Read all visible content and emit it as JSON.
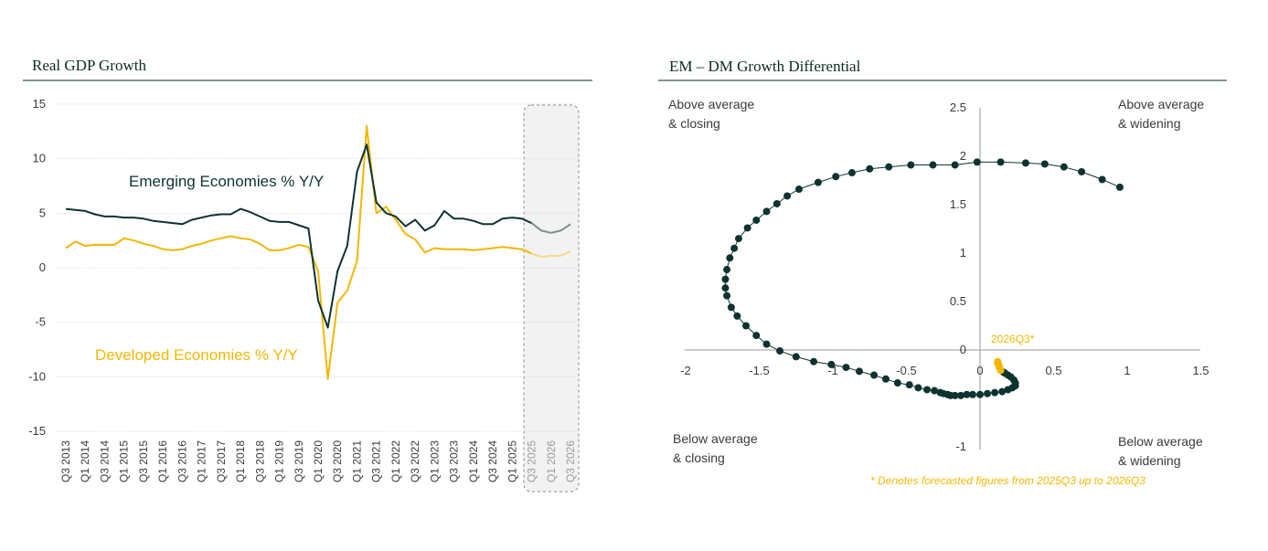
{
  "colors": {
    "em": "#0d3330",
    "dm": "#f2b705",
    "em_forecast": "#7f8d8b",
    "dm_forecast": "#f4d98a",
    "axis": "#9a9a9a",
    "grid": "#d3d3d3",
    "text": "#3a3a3a",
    "dark": "#0d2b26"
  },
  "chart_data": [
    {
      "type": "line",
      "title": "Real GDP Growth",
      "xlabel": "",
      "ylabel": "",
      "ylim": [
        -15,
        15
      ],
      "yticks": [
        15,
        10,
        5,
        0,
        -5,
        -10,
        -15
      ],
      "ytick_labels": [
        "15",
        "10",
        "5",
        "0",
        "-5",
        "-10",
        "-15"
      ],
      "x_tick_labels": [
        "Q3 2013",
        "Q1 2014",
        "Q3 2014",
        "Q1 2015",
        "Q3 2015",
        "Q1 2016",
        "Q3 2016",
        "Q1 2017",
        "Q3 2017",
        "Q1 2018",
        "Q3 2018",
        "Q1 2019",
        "Q3 2019",
        "Q1 2020",
        "Q3 2020",
        "Q1 2021",
        "Q3 2021",
        "Q1 2022",
        "Q3 2022",
        "Q1 2023",
        "Q3 2023",
        "Q1 2024",
        "Q3 2024",
        "Q1 2025",
        "Q3 2025",
        "Q1 2026",
        "Q3 2026"
      ],
      "forecast_start_index": 48,
      "forecast_tick_labels": [
        "Q3 2025",
        "Q1 2026",
        "Q3 2026"
      ],
      "series": [
        {
          "name": "Emerging Economies % Y/Y",
          "label": "Emerging Economies % Y/Y",
          "values": [
            5.4,
            5.3,
            5.2,
            4.9,
            4.7,
            4.7,
            4.6,
            4.6,
            4.5,
            4.3,
            4.2,
            4.1,
            4.0,
            4.4,
            4.6,
            4.8,
            4.9,
            4.9,
            5.4,
            5.1,
            4.7,
            4.3,
            4.2,
            4.2,
            3.9,
            3.6,
            -3.0,
            -5.5,
            -0.3,
            2.0,
            8.8,
            11.3,
            6.0,
            5.0,
            4.7,
            3.8,
            4.4,
            3.4,
            3.9,
            5.2,
            4.5,
            4.5,
            4.3,
            4.0,
            4.0,
            4.5,
            4.6,
            4.5,
            4.1,
            3.4,
            3.2,
            3.4,
            4.0
          ]
        },
        {
          "name": "Developed Economies % Y/Y",
          "label": "Developed Economies % Y/Y",
          "values": [
            1.8,
            2.4,
            2.0,
            2.1,
            2.1,
            2.1,
            2.7,
            2.5,
            2.2,
            2.0,
            1.7,
            1.6,
            1.7,
            2.0,
            2.2,
            2.5,
            2.7,
            2.9,
            2.7,
            2.6,
            2.2,
            1.6,
            1.6,
            1.8,
            2.1,
            1.9,
            -0.3,
            -10.2,
            -3.2,
            -2.1,
            0.6,
            13.0,
            5.0,
            5.6,
            4.4,
            3.1,
            2.6,
            1.4,
            1.8,
            1.7,
            1.7,
            1.7,
            1.6,
            1.7,
            1.8,
            1.9,
            1.8,
            1.7,
            1.3,
            1.0,
            1.1,
            1.1,
            1.5
          ]
        }
      ]
    },
    {
      "type": "scatter",
      "title": "EM – DM Growth Differential",
      "xlim": [
        -2,
        1.5
      ],
      "ylim": [
        -1,
        2.5
      ],
      "xticks": [
        -2,
        -1.5,
        -1,
        -0.5,
        0,
        0.5,
        1,
        1.5
      ],
      "xtick_labels": [
        "-2",
        "-1.5",
        "-1",
        "-0.5",
        "0",
        "0.5",
        "1",
        "1.5"
      ],
      "yticks": [
        2.5,
        2,
        1.5,
        1,
        0.5,
        0,
        -1
      ],
      "ytick_labels": [
        "2.5",
        "2",
        "1.5",
        "1",
        "0.5",
        "0",
        "-1"
      ],
      "quadrants": {
        "top_left": [
          "Above average",
          "& closing"
        ],
        "top_right": [
          "Above average",
          "& widening"
        ],
        "bottom_left": [
          "Below average",
          "& closing"
        ],
        "bottom_right": [
          "Below average",
          "& widening"
        ]
      },
      "forecast_label": "2026Q3*",
      "footnote": "* Denotes forecasted figures from 2025Q3 up to 2026Q3",
      "points": [
        [
          0.95,
          1.68
        ],
        [
          0.83,
          1.76
        ],
        [
          0.69,
          1.84
        ],
        [
          0.57,
          1.89
        ],
        [
          0.44,
          1.92
        ],
        [
          0.31,
          1.93
        ],
        [
          0.14,
          1.94
        ],
        [
          -0.02,
          1.94
        ],
        [
          -0.17,
          1.91
        ],
        [
          -0.32,
          1.91
        ],
        [
          -0.47,
          1.91
        ],
        [
          -0.62,
          1.89
        ],
        [
          -0.75,
          1.87
        ],
        [
          -0.87,
          1.83
        ],
        [
          -0.98,
          1.79
        ],
        [
          -1.1,
          1.73
        ],
        [
          -1.23,
          1.66
        ],
        [
          -1.31,
          1.59
        ],
        [
          -1.38,
          1.51
        ],
        [
          -1.45,
          1.43
        ],
        [
          -1.52,
          1.34
        ],
        [
          -1.58,
          1.26
        ],
        [
          -1.64,
          1.15
        ],
        [
          -1.67,
          1.05
        ],
        [
          -1.7,
          0.95
        ],
        [
          -1.72,
          0.83
        ],
        [
          -1.73,
          0.73
        ],
        [
          -1.73,
          0.64
        ],
        [
          -1.72,
          0.56
        ],
        [
          -1.69,
          0.44
        ],
        [
          -1.65,
          0.35
        ],
        [
          -1.59,
          0.25
        ],
        [
          -1.52,
          0.15
        ],
        [
          -1.45,
          0.06
        ],
        [
          -1.36,
          -0.01
        ],
        [
          -1.25,
          -0.07
        ],
        [
          -1.13,
          -0.12
        ],
        [
          -1.01,
          -0.15
        ],
        [
          -0.91,
          -0.18
        ],
        [
          -0.82,
          -0.22
        ],
        [
          -0.72,
          -0.26
        ],
        [
          -0.64,
          -0.3
        ],
        [
          -0.56,
          -0.34
        ],
        [
          -0.48,
          -0.36
        ],
        [
          -0.42,
          -0.39
        ],
        [
          -0.36,
          -0.41
        ],
        [
          -0.31,
          -0.42
        ],
        [
          -0.27,
          -0.44
        ],
        [
          -0.25,
          -0.45
        ],
        [
          -0.22,
          -0.46
        ],
        [
          -0.2,
          -0.47
        ],
        [
          -0.17,
          -0.47
        ],
        [
          -0.13,
          -0.47
        ],
        [
          -0.09,
          -0.46
        ],
        [
          -0.05,
          -0.46
        ],
        [
          0.0,
          -0.46
        ],
        [
          0.05,
          -0.45
        ],
        [
          0.1,
          -0.44
        ],
        [
          0.15,
          -0.43
        ],
        [
          0.19,
          -0.41
        ],
        [
          0.22,
          -0.39
        ],
        [
          0.24,
          -0.37
        ],
        [
          0.24,
          -0.34
        ],
        [
          0.23,
          -0.31
        ],
        [
          0.21,
          -0.28
        ],
        [
          0.19,
          -0.26
        ],
        [
          0.17,
          -0.24
        ],
        [
          0.16,
          -0.23
        ]
      ],
      "forecast_points": [
        [
          0.14,
          -0.21
        ],
        [
          0.13,
          -0.18
        ],
        [
          0.13,
          -0.16
        ],
        [
          0.12,
          -0.14
        ],
        [
          0.12,
          -0.12
        ]
      ]
    }
  ]
}
